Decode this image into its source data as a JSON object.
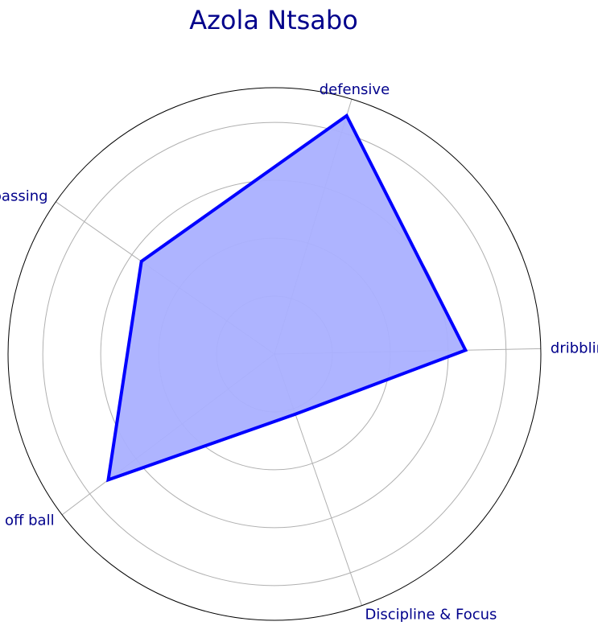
{
  "chart_data": {
    "type": "radar",
    "title": "Azola Ntsabo",
    "categories": [
      "dribbling",
      "defensive",
      "passing",
      "off ball",
      "Discipline & Focus"
    ],
    "series": [
      {
        "values": [
          3.3,
          4.3,
          2.8,
          3.6,
          1.1
        ]
      }
    ],
    "rlim": [
      0,
      4.6
    ],
    "radial_gridlines": [
      1,
      2,
      3,
      4
    ],
    "grid": true,
    "colors": {
      "title": "#00008b",
      "labels": "#00008b",
      "line": "#0000ff",
      "fill": "#aab0ff",
      "grid": "#b0b0b0",
      "outer_circle": "#000000"
    }
  }
}
